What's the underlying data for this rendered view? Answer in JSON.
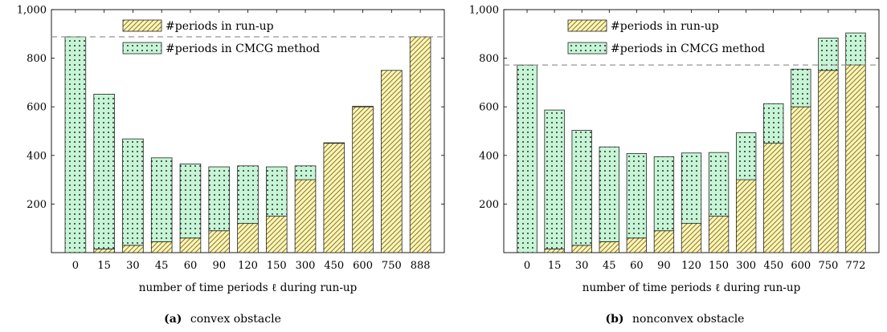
{
  "colors": {
    "runup_fill": "#fdf5b8",
    "runup_hatch": "#7a6a1a",
    "cmcg_fill": "#c6f5d6",
    "cmcg_dots": "#1c1c1c",
    "edge": "#222222",
    "reference_line": "#8a8a8a"
  },
  "chart_data": [
    {
      "type": "bar",
      "stacked": true,
      "panel_label": "(a)",
      "caption": "convex obstacle",
      "xlabel": "number of time periods ℓ during run-up",
      "ylabel": "",
      "ylim": [
        0,
        1000
      ],
      "yticks": [
        200,
        400,
        600,
        800,
        1000
      ],
      "ytick_labels": [
        "200",
        "400",
        "600",
        "800",
        "1,000"
      ],
      "reference_line": 888,
      "categories": [
        "0",
        "15",
        "30",
        "45",
        "60",
        "90",
        "120",
        "150",
        "300",
        "450",
        "600",
        "750",
        "888"
      ],
      "series": [
        {
          "name": "#periods in run-up",
          "style": "hatch",
          "values": [
            0,
            15,
            30,
            45,
            60,
            90,
            120,
            150,
            300,
            450,
            600,
            750,
            888
          ]
        },
        {
          "name": "#periods in CMCG method",
          "style": "dots",
          "values": [
            888,
            637,
            438,
            345,
            305,
            263,
            237,
            203,
            57,
            2,
            2,
            0,
            0
          ]
        }
      ],
      "legend_position": "top-center"
    },
    {
      "type": "bar",
      "stacked": true,
      "panel_label": "(b)",
      "caption": "nonconvex obstacle",
      "xlabel": "number of time periods ℓ during run-up",
      "ylabel": "",
      "ylim": [
        0,
        1000
      ],
      "yticks": [
        200,
        400,
        600,
        800,
        1000
      ],
      "ytick_labels": [
        "200",
        "400",
        "600",
        "800",
        "1,000"
      ],
      "reference_line": 772,
      "categories": [
        "0",
        "15",
        "30",
        "45",
        "60",
        "90",
        "120",
        "150",
        "300",
        "450",
        "600",
        "750",
        "772"
      ],
      "series": [
        {
          "name": "#periods in run-up",
          "style": "hatch",
          "values": [
            0,
            15,
            30,
            45,
            60,
            90,
            120,
            150,
            300,
            450,
            600,
            750,
            772
          ]
        },
        {
          "name": "#periods in CMCG method",
          "style": "dots",
          "values": [
            772,
            572,
            473,
            390,
            348,
            305,
            290,
            262,
            193,
            163,
            155,
            133,
            132
          ]
        }
      ],
      "legend_position": "top-left"
    }
  ]
}
